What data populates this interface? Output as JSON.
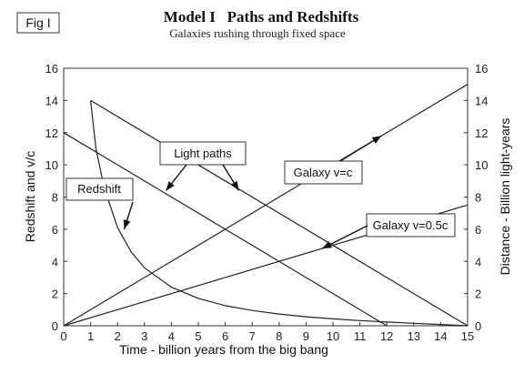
{
  "figure_label": "Fig I",
  "chart_data": {
    "type": "line",
    "title": "Model I   Paths and Redshifts",
    "subtitle": "Galaxies rushing through fixed space",
    "xlabel": "Time - billion years from the big bang",
    "ylabel_left": "Redshift and v/c",
    "ylabel_right": "Distance - Billion light-years",
    "xlim": [
      0,
      15
    ],
    "ylim": [
      0,
      16
    ],
    "x_ticks": [
      "0",
      "1",
      "2",
      "3",
      "4",
      "5",
      "6",
      "7",
      "8",
      "9",
      "10",
      "11",
      "12",
      "13",
      "14",
      "15"
    ],
    "y_ticks_left": [
      "0",
      "2",
      "4",
      "6",
      "8",
      "10",
      "12",
      "14",
      "16"
    ],
    "y_ticks_right": [
      "0",
      "2",
      "4",
      "6",
      "8",
      "10",
      "12",
      "14",
      "16"
    ],
    "grid": false,
    "series": [
      {
        "x": [
          0,
          15
        ],
        "y": [
          0,
          15
        ]
      },
      {
        "x": [
          0,
          15
        ],
        "y": [
          0,
          7.5
        ]
      },
      {
        "x": [
          1,
          15
        ],
        "y": [
          14,
          0
        ]
      },
      {
        "x": [
          0,
          12
        ],
        "y": [
          12,
          0
        ]
      },
      {
        "x": [
          1,
          1.2,
          1.5,
          2,
          2.5,
          3,
          4,
          5,
          6,
          7,
          8,
          9,
          10,
          11,
          12,
          13,
          14,
          15
        ],
        "y": [
          14,
          11,
          8.6,
          6.1,
          4.6,
          3.6,
          2.4,
          1.7,
          1.25,
          0.95,
          0.73,
          0.56,
          0.43,
          0.32,
          0.23,
          0.15,
          0.08,
          0
        ]
      }
    ],
    "annotations": [
      {
        "text": "Redshift",
        "points_to": [
          2.25,
          6.0
        ]
      },
      {
        "text": "Light paths",
        "points_to": [
          [
            3.8,
            8.4
          ],
          [
            6.5,
            8.4
          ]
        ]
      },
      {
        "text": "Galaxy v=c",
        "points_to": [
          11.8,
          11.8
        ]
      },
      {
        "text": "Galaxy v=0.5c",
        "points_to": [
          9.6,
          4.8
        ]
      }
    ]
  }
}
